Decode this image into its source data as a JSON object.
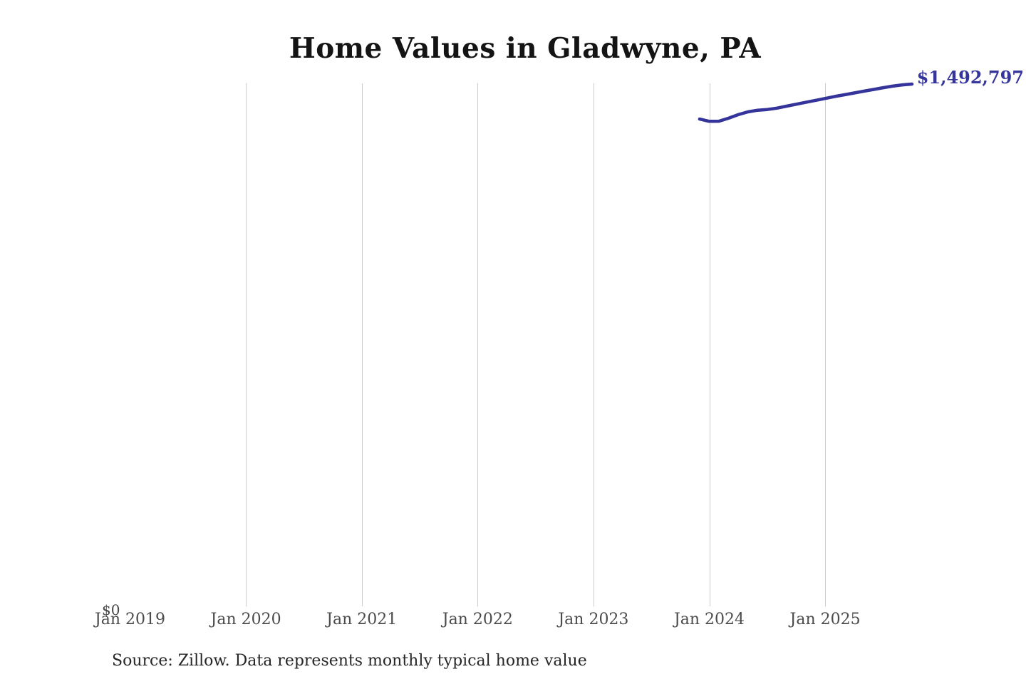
{
  "title": "Home Values in Gladwyne, PA",
  "source_note": "Source: Zillow. Data represents monthly typical home value",
  "y_axis": {
    "zero_label": "$0"
  },
  "end_value_label": "$1,492,797",
  "x_axis": {
    "ticks": [
      {
        "label": "Jan 2019",
        "gridline": false
      },
      {
        "label": "Jan 2020",
        "gridline": true
      },
      {
        "label": "Jan 2021",
        "gridline": true
      },
      {
        "label": "Jan 2022",
        "gridline": true
      },
      {
        "label": "Jan 2023",
        "gridline": true
      },
      {
        "label": "Jan 2024",
        "gridline": true
      },
      {
        "label": "Jan 2025",
        "gridline": true
      }
    ]
  },
  "colors": {
    "line": "#34349a",
    "value_label": "#35359b",
    "gridline": "#cccccc",
    "axis_text": "#4b4b4b",
    "title_text": "#141414",
    "source_text": "#262626",
    "background": "#ffffff"
  },
  "chart_data": {
    "type": "line",
    "title": "Home Values in Gladwyne, PA",
    "xlabel": "",
    "ylabel": "",
    "ylim": [
      0,
      1500000
    ],
    "grid": "vertical-yearly",
    "legend": "none",
    "x_ticks": [
      "Jan 2019",
      "Jan 2020",
      "Jan 2021",
      "Jan 2022",
      "Jan 2023",
      "Jan 2024",
      "Jan 2025"
    ],
    "series_name": "Monthly typical home value (USD)",
    "end_label": "$1,492,797",
    "x": [
      "Dec 2023",
      "Jan 2024",
      "Feb 2024",
      "Mar 2024",
      "Apr 2024",
      "May 2024",
      "Jun 2024",
      "Jul 2024",
      "Aug 2024",
      "Sep 2024",
      "Oct 2024",
      "Nov 2024",
      "Dec 2024",
      "Jan 2025",
      "Feb 2025",
      "Mar 2025",
      "Apr 2025",
      "May 2025",
      "Jun 2025",
      "Jul 2025",
      "Aug 2025",
      "Sep 2025",
      "Oct 2025"
    ],
    "values": [
      1393500,
      1387000,
      1387500,
      1396000,
      1406000,
      1414000,
      1418500,
      1420500,
      1424500,
      1430000,
      1435500,
      1441000,
      1446500,
      1452000,
      1457500,
      1462500,
      1467500,
      1472500,
      1477500,
      1482500,
      1487000,
      1490500,
      1492797
    ]
  }
}
